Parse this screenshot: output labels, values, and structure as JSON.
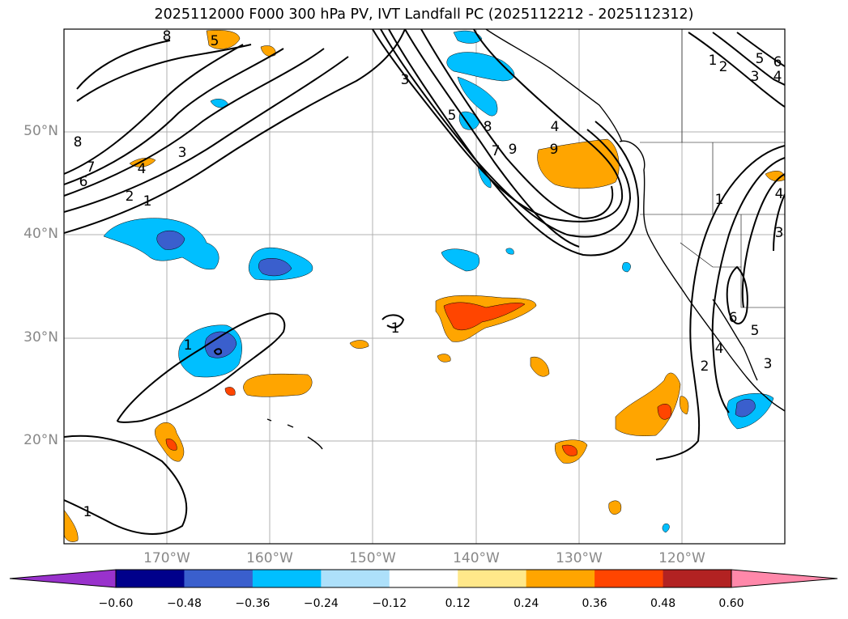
{
  "title": "2025112000 F000 300 hPa PV, IVT Landfall PC (2025112212 - 2025112312)",
  "lat_labels": [
    "50°N",
    "40°N",
    "30°N",
    "20°N"
  ],
  "lon_labels": [
    "170°W",
    "160°W",
    "150°W",
    "140°W",
    "130°W",
    "120°W"
  ],
  "colorbar": {
    "tick_labels": [
      "−0.60",
      "−0.48",
      "−0.36",
      "−0.24",
      "−0.12",
      "0.12",
      "0.24",
      "0.36",
      "0.48",
      "0.60"
    ],
    "colors": [
      "#9932CC",
      "#00008B",
      "#3A5FCD",
      "#00BFFF",
      "#ADE0FA",
      "#FFFFFF",
      "#FFE88A",
      "#FFA500",
      "#FF4500",
      "#B22222",
      "#FF88AA"
    ]
  },
  "contour_labels": [
    "1",
    "2",
    "3",
    "4",
    "5",
    "6",
    "7",
    "8",
    "9"
  ],
  "colors": {
    "grid": "#b0b0b0",
    "contour": "#000000",
    "blue_light": "#00BFFF",
    "blue_dark": "#3A5FCD",
    "orange": "#FFA500",
    "red": "#FF4500"
  }
}
